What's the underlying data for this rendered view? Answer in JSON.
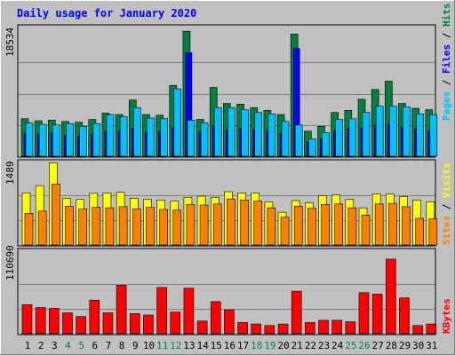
{
  "chart_data": [
    {
      "type": "bar",
      "panel": "pages-files-hits",
      "title": "Daily usage for January 2020",
      "ylabel_parts": [
        {
          "text": "Pages",
          "color": "#00C0FF"
        },
        {
          "text": " / ",
          "color": "#000000"
        },
        {
          "text": "Files",
          "color": "#0000FF"
        },
        {
          "text": " / ",
          "color": "#000000"
        },
        {
          "text": "Hits",
          "color": "#008040"
        }
      ],
      "max_label": "18534",
      "ylim": [
        0,
        18534
      ],
      "grid": true,
      "categories": [
        "1",
        "2",
        "3",
        "4",
        "5",
        "6",
        "7",
        "8",
        "9",
        "10",
        "11",
        "12",
        "13",
        "14",
        "15",
        "16",
        "17",
        "18",
        "19",
        "20",
        "21",
        "22",
        "23",
        "24",
        "25",
        "26",
        "27",
        "28",
        "29",
        "30",
        "31"
      ],
      "series": [
        {
          "name": "Hits",
          "color": "#008040",
          "values": [
            5400,
            5100,
            5200,
            5000,
            4900,
            5300,
            6200,
            6000,
            8100,
            6000,
            5900,
            10200,
            18000,
            5300,
            9900,
            7600,
            7500,
            7000,
            6600,
            6000,
            17600,
            3600,
            4300,
            6300,
            6600,
            8200,
            9600,
            10800,
            7600,
            6900,
            6700
          ]
        },
        {
          "name": "Files",
          "color": "#0000FF",
          "values": [
            3300,
            3200,
            3300,
            3000,
            2900,
            3200,
            3500,
            3600,
            4000,
            3400,
            3500,
            4100,
            14900,
            3500,
            4400,
            3800,
            3900,
            3800,
            3700,
            3300,
            15500,
            2100,
            2500,
            3700,
            3900,
            4100,
            4500,
            4700,
            4200,
            3900,
            3600
          ]
        },
        {
          "name": "Pages",
          "color": "#00C0FF",
          "values": [
            4800,
            4600,
            4500,
            4700,
            4300,
            4700,
            6000,
            5700,
            7000,
            5500,
            5400,
            9700,
            5200,
            4800,
            7000,
            7000,
            6700,
            6300,
            6100,
            5000,
            4500,
            2500,
            3400,
            5300,
            5400,
            6300,
            7200,
            7200,
            7100,
            6100,
            6000
          ]
        }
      ]
    },
    {
      "type": "bar",
      "panel": "sites-visits",
      "ylabel_parts": [
        {
          "text": "Sites",
          "color": "#FF8000"
        },
        {
          "text": " / ",
          "color": "#000000"
        },
        {
          "text": "Visits",
          "color": "#FFFF00"
        }
      ],
      "max_label": "1489",
      "ylim": [
        0,
        1489
      ],
      "grid": true,
      "categories": [
        "1",
        "2",
        "3",
        "4",
        "5",
        "6",
        "7",
        "8",
        "9",
        "10",
        "11",
        "12",
        "13",
        "14",
        "15",
        "16",
        "17",
        "18",
        "19",
        "20",
        "21",
        "22",
        "23",
        "24",
        "25",
        "26",
        "27",
        "28",
        "29",
        "30",
        "31"
      ],
      "series": [
        {
          "name": "Visits",
          "color": "#FFFF00",
          "values": [
            940,
            1070,
            1480,
            840,
            820,
            930,
            940,
            950,
            840,
            820,
            810,
            790,
            860,
            880,
            860,
            960,
            940,
            940,
            780,
            590,
            800,
            760,
            890,
            900,
            820,
            670,
            920,
            920,
            870,
            810,
            780
          ]
        },
        {
          "name": "Sites",
          "color": "#FF8000",
          "values": [
            570,
            610,
            1100,
            700,
            650,
            680,
            670,
            690,
            650,
            680,
            640,
            630,
            730,
            720,
            740,
            830,
            810,
            790,
            670,
            500,
            700,
            660,
            730,
            740,
            670,
            540,
            740,
            750,
            690,
            480,
            470
          ]
        }
      ]
    },
    {
      "type": "bar",
      "panel": "kbytes",
      "ylabel_parts": [
        {
          "text": "KBytes",
          "color": "#FF0000"
        }
      ],
      "max_label": "110690",
      "ylim": [
        0,
        110690
      ],
      "grid": true,
      "categories": [
        "1",
        "2",
        "3",
        "4",
        "5",
        "6",
        "7",
        "8",
        "9",
        "10",
        "11",
        "12",
        "13",
        "14",
        "15",
        "16",
        "17",
        "18",
        "19",
        "20",
        "21",
        "22",
        "23",
        "24",
        "25",
        "26",
        "27",
        "28",
        "29",
        "30",
        "31"
      ],
      "series": [
        {
          "name": "KBytes",
          "color": "#FF0000",
          "values": [
            39000,
            35000,
            34000,
            28000,
            23000,
            45000,
            28000,
            65000,
            27000,
            25000,
            62000,
            29000,
            61000,
            17000,
            43000,
            32000,
            15000,
            13000,
            11000,
            13000,
            57000,
            15000,
            18000,
            18000,
            16000,
            55000,
            53000,
            100000,
            48000,
            11000,
            13000
          ]
        }
      ]
    }
  ],
  "x_axis": {
    "labels": [
      "1",
      "2",
      "3",
      "4",
      "5",
      "6",
      "7",
      "8",
      "9",
      "10",
      "11",
      "12",
      "13",
      "14",
      "15",
      "16",
      "17",
      "18",
      "19",
      "20",
      "21",
      "22",
      "23",
      "24",
      "25",
      "26",
      "27",
      "28",
      "29",
      "30",
      "31"
    ],
    "weekend_days": [
      "4",
      "5",
      "11",
      "12",
      "18",
      "19",
      "25",
      "26"
    ],
    "label_color": "#000000",
    "weekend_label_color": "#00805C"
  },
  "colors": {
    "frame": "#C0C0C0",
    "plot_background": "#C0C0C0",
    "grid": "#808080",
    "title": "#0000FF"
  }
}
